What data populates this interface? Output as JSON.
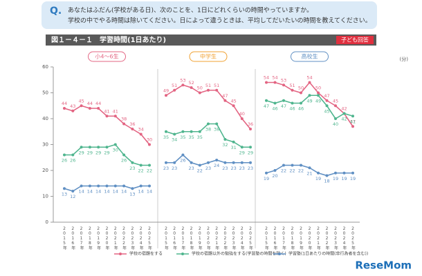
{
  "header": {
    "q": "Q.",
    "line1": "あなたはふだん(学校がある日)、次のことを、1日にどれくらいの時間やっていますか。",
    "line2": "学校の中でやる時間は除いてください。日によって違うときは、平均してだいたいの時間を教えてください。"
  },
  "figure": {
    "title": "図１－４－１　学習時間(1日あたり)",
    "badge": "子ども回答"
  },
  "logo": "ReseMom",
  "chart_data": [
    {
      "type": "line",
      "title": "小4～6生",
      "yunit": "(分)",
      "ylim": [
        0,
        60
      ],
      "yticks": [
        0,
        10,
        20,
        30,
        40,
        50,
        60
      ],
      "categories": [
        "2015年",
        "2016年",
        "2017年",
        "2018年",
        "2019年",
        "2020年",
        "2021年",
        "2022年",
        "2023年",
        "2024年",
        "2025年"
      ],
      "series": [
        {
          "name": "学校の宿題をする",
          "color": "#e36482",
          "values": [
            44,
            43,
            45,
            44,
            44,
            41,
            41,
            38,
            36,
            34,
            30
          ]
        },
        {
          "name": "学校の宿題以外の勉強をする(学習塾の時間を除く)",
          "color": "#4fb58e",
          "values": [
            26,
            26,
            29,
            29,
            29,
            29,
            30,
            26,
            23,
            22,
            22
          ]
        },
        {
          "name": "学習塾(1日あたりの時間(非行為者を含む))",
          "color": "#5f8fc3",
          "values": [
            13,
            12,
            14,
            14,
            14,
            14,
            14,
            14,
            13,
            14,
            14
          ]
        }
      ]
    },
    {
      "type": "line",
      "title": "中学生",
      "ylim": [
        0,
        60
      ],
      "categories": [
        "2015年",
        "2016年",
        "2017年",
        "2018年",
        "2019年",
        "2020年",
        "2021年",
        "2022年",
        "2023年",
        "2024年",
        "2025年"
      ],
      "series": [
        {
          "color": "#e36482",
          "values": [
            49,
            51,
            53,
            52,
            50,
            51,
            51,
            47,
            45,
            40,
            36
          ]
        },
        {
          "color": "#4fb58e",
          "values": [
            35,
            34,
            35,
            35,
            35,
            38,
            38,
            32,
            31,
            29,
            29
          ]
        },
        {
          "color": "#5f8fc3",
          "values": [
            23,
            23,
            26,
            23,
            22,
            23,
            24,
            23,
            23,
            23,
            23
          ]
        }
      ]
    },
    {
      "type": "line",
      "title": "高校生",
      "ylim": [
        0,
        60
      ],
      "categories": [
        "2015年",
        "2016年",
        "2017年",
        "2018年",
        "2019年",
        "2020年",
        "2021年",
        "2022年",
        "2023年",
        "2024年",
        "2025年"
      ],
      "series": [
        {
          "color": "#e36482",
          "values": [
            54,
            54,
            53,
            51,
            50,
            54,
            50,
            47,
            45,
            42,
            37
          ]
        },
        {
          "color": "#4fb58e",
          "values": [
            47,
            46,
            47,
            46,
            46,
            49,
            49,
            45,
            40,
            42,
            41
          ]
        },
        {
          "color": "#5f8fc3",
          "values": [
            19,
            20,
            22,
            22,
            22,
            21,
            19,
            18,
            19,
            19,
            19
          ]
        }
      ]
    }
  ]
}
